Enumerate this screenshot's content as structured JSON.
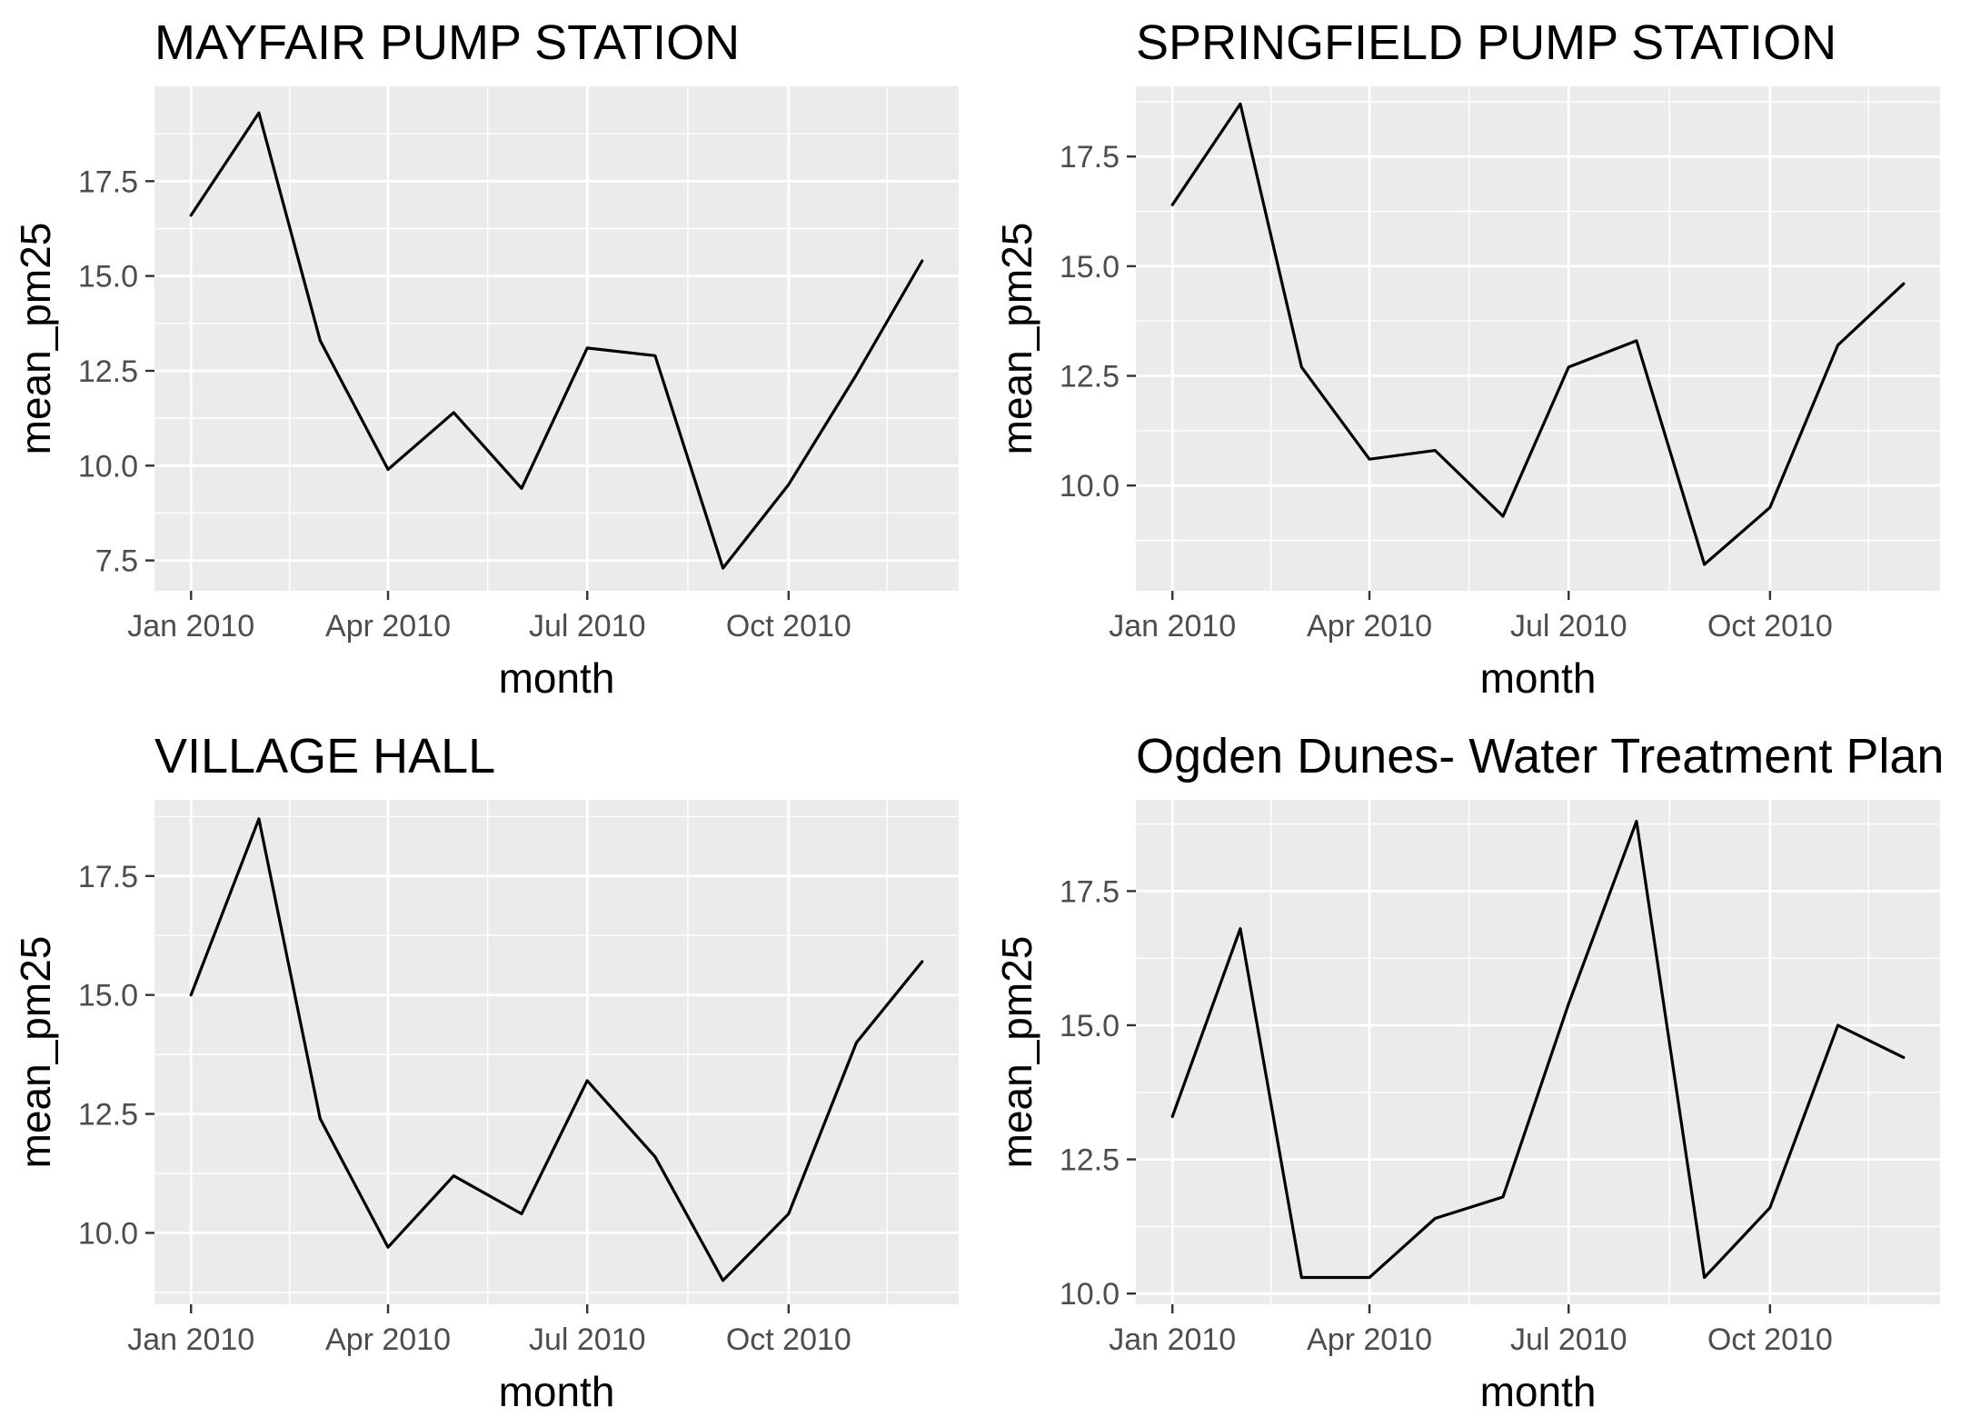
{
  "chart_data": [
    {
      "type": "line",
      "title": "MAYFAIR PUMP STATION",
      "xlabel": "month",
      "ylabel": "mean_pm25",
      "x": [
        "2010-01",
        "2010-02",
        "2010-03",
        "2010-04",
        "2010-05",
        "2010-06",
        "2010-07",
        "2010-08",
        "2010-09",
        "2010-10",
        "2010-11",
        "2010-12"
      ],
      "x_ticks": [
        "Jan 2010",
        "Apr 2010",
        "Jul 2010",
        "Oct 2010"
      ],
      "y_ticks": [
        7.5,
        10.0,
        12.5,
        15.0,
        17.5
      ],
      "ylim": [
        6.7,
        20.0
      ],
      "grid": true,
      "series": [
        {
          "values": [
            16.6,
            19.3,
            13.3,
            9.9,
            11.4,
            9.4,
            13.1,
            12.9,
            7.3,
            9.5,
            12.4,
            15.4
          ]
        }
      ]
    },
    {
      "type": "line",
      "title": "SPRINGFIELD PUMP STATION",
      "xlabel": "month",
      "ylabel": "mean_pm25",
      "x": [
        "2010-01",
        "2010-02",
        "2010-03",
        "2010-04",
        "2010-05",
        "2010-06",
        "2010-07",
        "2010-08",
        "2010-09",
        "2010-10",
        "2010-11",
        "2010-12"
      ],
      "x_ticks": [
        "Jan 2010",
        "Apr 2010",
        "Jul 2010",
        "Oct 2010"
      ],
      "y_ticks": [
        10.0,
        12.5,
        15.0,
        17.5
      ],
      "ylim": [
        7.6,
        19.1
      ],
      "grid": true,
      "series": [
        {
          "values": [
            16.4,
            18.7,
            12.7,
            10.6,
            10.8,
            9.3,
            12.7,
            13.3,
            8.2,
            9.5,
            13.2,
            14.6
          ]
        }
      ]
    },
    {
      "type": "line",
      "title": "VILLAGE HALL",
      "xlabel": "month",
      "ylabel": "mean_pm25",
      "x": [
        "2010-01",
        "2010-02",
        "2010-03",
        "2010-04",
        "2010-05",
        "2010-06",
        "2010-07",
        "2010-08",
        "2010-09",
        "2010-10",
        "2010-11",
        "2010-12"
      ],
      "x_ticks": [
        "Jan 2010",
        "Apr 2010",
        "Jul 2010",
        "Oct 2010"
      ],
      "y_ticks": [
        10.0,
        12.5,
        15.0,
        17.5
      ],
      "ylim": [
        8.5,
        19.1
      ],
      "grid": true,
      "series": [
        {
          "values": [
            15.0,
            18.7,
            12.4,
            9.7,
            11.2,
            10.4,
            13.2,
            11.6,
            9.0,
            10.4,
            14.0,
            15.7
          ]
        }
      ]
    },
    {
      "type": "line",
      "title": "Ogden Dunes- Water Treatment Plan",
      "xlabel": "month",
      "ylabel": "mean_pm25",
      "x": [
        "2010-01",
        "2010-02",
        "2010-03",
        "2010-04",
        "2010-05",
        "2010-06",
        "2010-07",
        "2010-08",
        "2010-09",
        "2010-10",
        "2010-11",
        "2010-12"
      ],
      "x_ticks": [
        "Jan 2010",
        "Apr 2010",
        "Jul 2010",
        "Oct 2010"
      ],
      "y_ticks": [
        10.0,
        12.5,
        15.0,
        17.5
      ],
      "ylim": [
        9.8,
        19.2
      ],
      "grid": true,
      "series": [
        {
          "values": [
            13.3,
            16.8,
            10.3,
            10.3,
            11.4,
            11.8,
            15.4,
            18.8,
            10.3,
            11.6,
            15.0,
            14.4
          ]
        }
      ]
    }
  ]
}
